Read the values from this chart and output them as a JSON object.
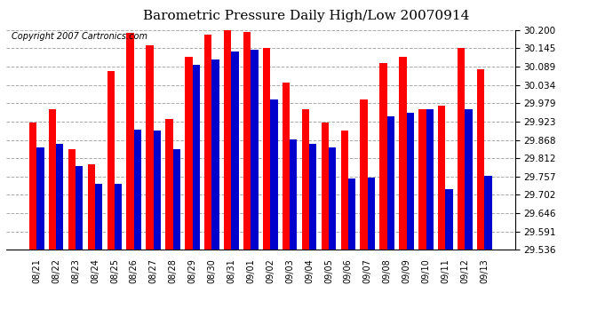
{
  "title": "Barometric Pressure Daily High/Low 20070914",
  "copyright": "Copyright 2007 Cartronics.com",
  "dates": [
    "08/21",
    "08/22",
    "08/23",
    "08/24",
    "08/25",
    "08/26",
    "08/27",
    "08/28",
    "08/29",
    "08/30",
    "08/31",
    "09/01",
    "09/02",
    "09/03",
    "09/04",
    "09/05",
    "09/06",
    "09/07",
    "09/08",
    "09/09",
    "09/10",
    "09/11",
    "09/12",
    "09/13"
  ],
  "highs": [
    29.92,
    29.96,
    29.84,
    29.795,
    30.075,
    30.19,
    30.155,
    29.93,
    30.12,
    30.185,
    30.2,
    30.195,
    30.145,
    30.04,
    29.96,
    29.92,
    29.895,
    29.99,
    30.1,
    30.12,
    29.96,
    29.97,
    30.145,
    30.08
  ],
  "lows": [
    29.845,
    29.855,
    29.79,
    29.735,
    29.735,
    29.9,
    29.895,
    29.84,
    30.095,
    30.11,
    30.135,
    30.14,
    29.99,
    29.87,
    29.855,
    29.845,
    29.75,
    29.755,
    29.94,
    29.95,
    29.96,
    29.72,
    29.96,
    29.76
  ],
  "high_color": "#ff0000",
  "low_color": "#0000cc",
  "bg_color": "#ffffff",
  "ymin": 29.536,
  "ymax": 30.2,
  "yticks": [
    29.536,
    29.591,
    29.646,
    29.702,
    29.757,
    29.812,
    29.868,
    29.923,
    29.979,
    30.034,
    30.089,
    30.145,
    30.2
  ],
  "grid_color": "#aaaaaa",
  "title_fontsize": 11,
  "copyright_fontsize": 7,
  "bar_width": 0.38
}
